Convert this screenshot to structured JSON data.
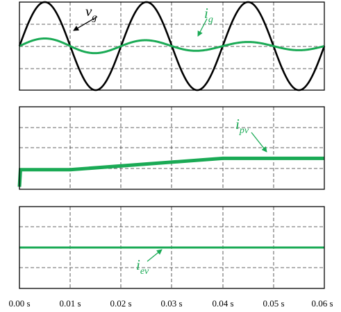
{
  "chart_data": [
    {
      "type": "line",
      "xlim": [
        0,
        0.06
      ],
      "x_ticks": [
        "0.00 s",
        "0.01 s",
        "0.02 s",
        "0.03 s",
        "0.04 s",
        "0.05 s",
        "0.06 s"
      ],
      "grid": true,
      "ylim": [
        -1.5,
        1.5
      ],
      "series": [
        {
          "name": "v_g",
          "label_main": "v",
          "label_sub": "g",
          "color": "#000000",
          "shape": "sine",
          "frequency_hz": 50,
          "amplitude": 1.5,
          "phase_rad": 0,
          "x_range": [
            0,
            0.06
          ]
        },
        {
          "name": "i_g",
          "label_main": "i",
          "label_sub": "g",
          "color": "#1aaa55",
          "shape": "sine",
          "frequency_hz": 50,
          "amplitude_profile": {
            "t": [
              0,
              0.01,
              0.04,
              0.06
            ],
            "a": [
              0.26,
              0.26,
              0.14,
              0.14
            ]
          },
          "phase_rad": 0,
          "x_range": [
            0,
            0.06
          ]
        }
      ]
    },
    {
      "type": "line",
      "xlim": [
        0,
        0.06
      ],
      "x_ticks": [
        "0.00 s",
        "0.01 s",
        "0.02 s",
        "0.03 s",
        "0.04 s",
        "0.05 s",
        "0.06 s"
      ],
      "grid": true,
      "ylim": [
        0,
        4
      ],
      "series": [
        {
          "name": "i_pv",
          "label_main": "i",
          "label_sub": "pv",
          "color": "#1aaa55",
          "x": [
            0,
            0.0002,
            0.01,
            0.04,
            0.06
          ],
          "y": [
            0.12,
            0.95,
            0.95,
            1.5,
            1.5
          ]
        }
      ]
    },
    {
      "type": "line",
      "xlim": [
        0,
        0.06
      ],
      "x_ticks": [
        "0.00 s",
        "0.01 s",
        "0.02 s",
        "0.03 s",
        "0.04 s",
        "0.05 s",
        "0.06 s"
      ],
      "grid": true,
      "ylim": [
        -2,
        2
      ],
      "series": [
        {
          "name": "i_ev",
          "label_main": "i",
          "label_sub": "ev",
          "color": "#1aaa55",
          "x": [
            0,
            0.06
          ],
          "y": [
            0,
            0
          ]
        }
      ]
    }
  ]
}
